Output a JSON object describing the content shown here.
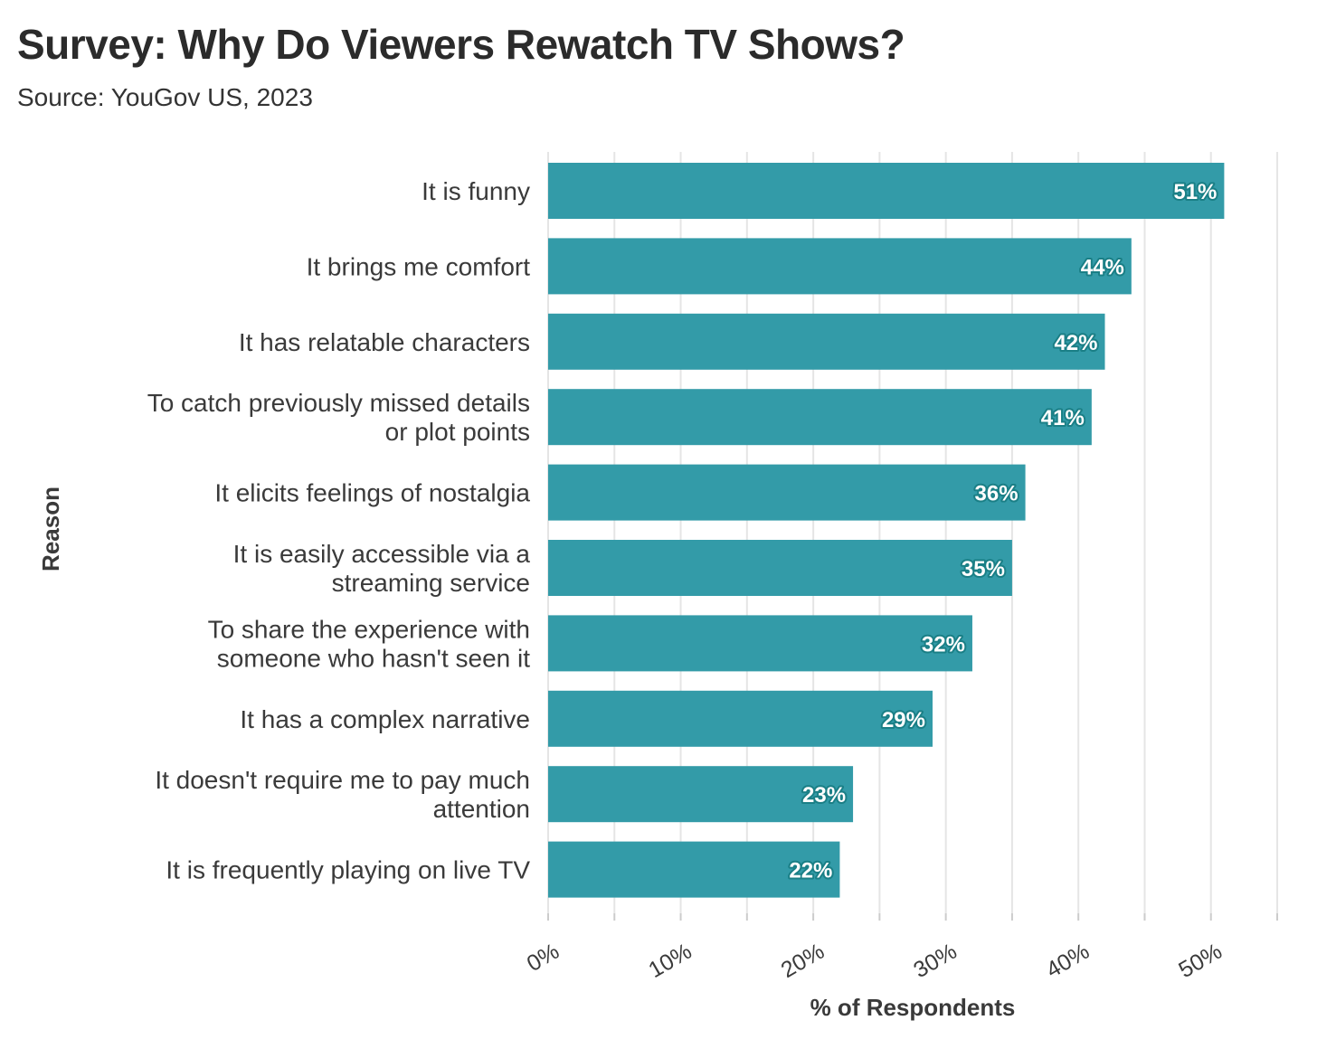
{
  "header": {
    "title": "Survey: Why Do Viewers Rewatch TV Shows?",
    "subtitle": "Source: YouGov US, 2023"
  },
  "colors": {
    "bar": "#339ba8",
    "gridline": "#e5e5e5",
    "label_outline": "#1a7f86"
  },
  "chart_data": {
    "type": "bar",
    "orientation": "horizontal",
    "title": "Survey: Why Do Viewers Rewatch TV Shows?",
    "subtitle": "Source: YouGov US, 2023",
    "xlabel": "% of Respondents",
    "ylabel": "Reason",
    "xlim": [
      0,
      55
    ],
    "x_ticks": [
      0,
      10,
      20,
      30,
      40,
      50
    ],
    "x_tick_labels": [
      "0%",
      "10%",
      "20%",
      "30%",
      "40%",
      "50%"
    ],
    "grid": true,
    "categories": [
      [
        "It is funny"
      ],
      [
        "It brings me comfort"
      ],
      [
        "It has relatable characters"
      ],
      [
        "To catch previously missed details",
        "or plot points"
      ],
      [
        "It elicits feelings of nostalgia"
      ],
      [
        "It is easily accessible via a",
        "streaming service"
      ],
      [
        "To share the experience with",
        "someone who hasn't seen it"
      ],
      [
        "It has a complex narrative"
      ],
      [
        "It doesn't require me to pay much",
        "attention"
      ],
      [
        "It is frequently playing on live TV"
      ]
    ],
    "values": [
      51,
      44,
      42,
      41,
      36,
      35,
      32,
      29,
      23,
      22
    ],
    "value_labels": [
      "51%",
      "44%",
      "42%",
      "41%",
      "36%",
      "35%",
      "32%",
      "29%",
      "23%",
      "22%"
    ]
  }
}
